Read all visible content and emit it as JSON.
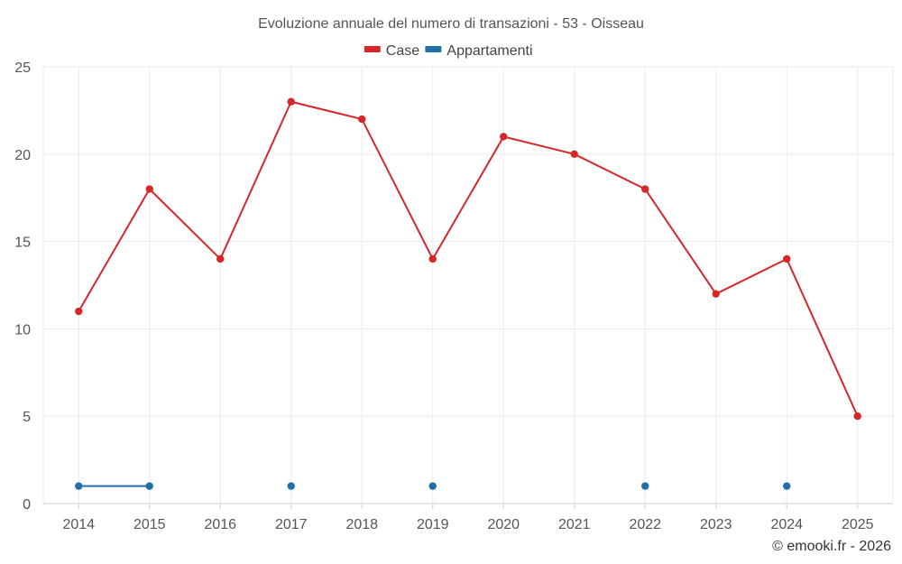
{
  "chart_data": {
    "type": "line",
    "title": "Evoluzione annuale del numero di transazioni - 53 - Oisseau",
    "categories": [
      "2014",
      "2015",
      "2016",
      "2017",
      "2018",
      "2019",
      "2020",
      "2021",
      "2022",
      "2023",
      "2024",
      "2025"
    ],
    "series": [
      {
        "name": "Case",
        "color": "#d62728",
        "values": [
          11,
          18,
          14,
          23,
          22,
          14,
          21,
          20,
          18,
          12,
          14,
          5
        ]
      },
      {
        "name": "Appartamenti",
        "color": "#1f6fa8",
        "values": [
          1,
          1,
          null,
          1,
          null,
          1,
          null,
          null,
          1,
          null,
          1,
          null
        ]
      }
    ],
    "ylim": [
      0,
      25
    ],
    "yticks": [
      0,
      5,
      10,
      15,
      20,
      25
    ],
    "xlabel": "",
    "ylabel": "",
    "grid": true,
    "legend_position": "top-center"
  },
  "credit": "© emooki.fr - 2026"
}
